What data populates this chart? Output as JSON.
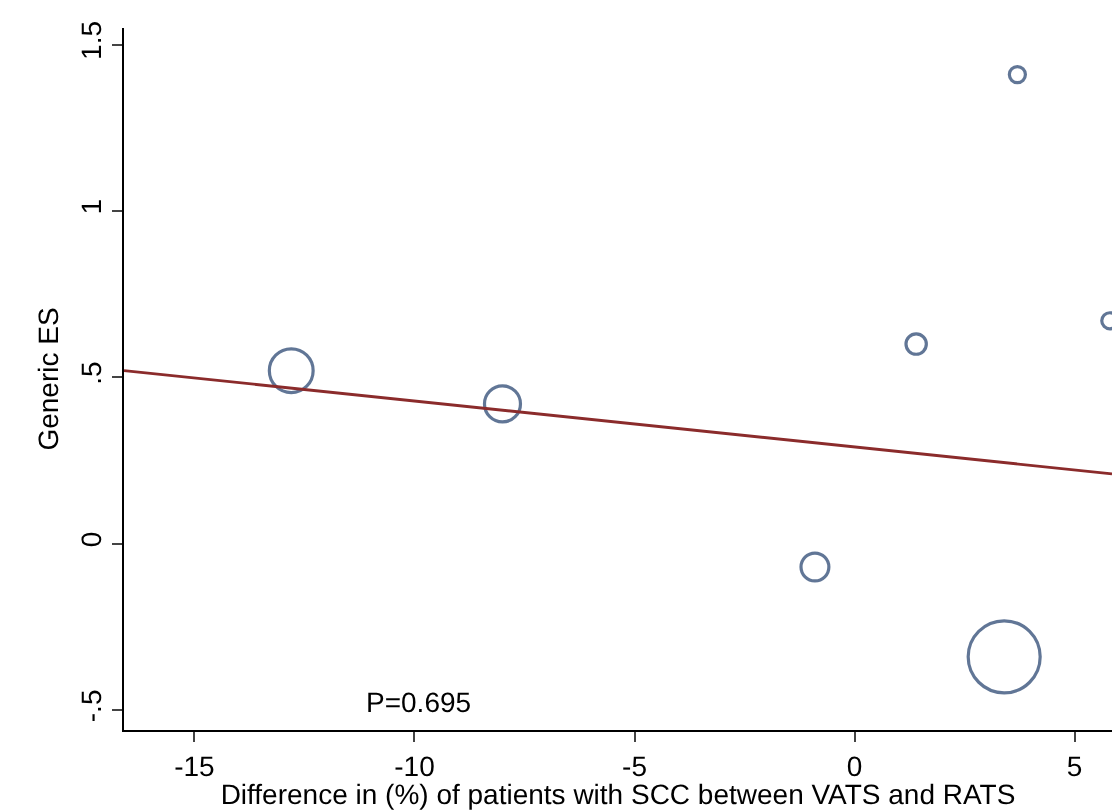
{
  "chart_data": {
    "type": "bubble",
    "xlabel": "Difference in (%) of patients with SCC between VATS and RATS",
    "ylabel": "Generic ES",
    "x": [
      -12.8,
      -8.0,
      -0.9,
      1.4,
      3.7,
      3.4,
      5.8
    ],
    "series": [
      {
        "color": "#1f3d6b",
        "values": [
          0.52,
          0.42,
          -0.07,
          0.6,
          1.41,
          -0.34,
          0.67
        ],
        "sizes": [
          0.37,
          0.25,
          0.15,
          0.08,
          0.05,
          1,
          0.05
        ]
      },
      {
        "type": "line",
        "color": "#8b2b2b",
        "x": [
          -16.6,
          5.85
        ],
        "values": [
          0.52,
          0.21
        ]
      }
    ],
    "xlim": [
      -16.6,
      5.85
    ],
    "ylim": [
      -0.56,
      1.55
    ],
    "xticks": [
      -15,
      -10,
      -5,
      0,
      5
    ],
    "yticks": [
      {
        "value": -0.5,
        "label": "-.5"
      },
      0,
      {
        "value": 0.5,
        "label": ".5"
      },
      1,
      1.5
    ],
    "annotations": [
      "P=0.695"
    ]
  }
}
